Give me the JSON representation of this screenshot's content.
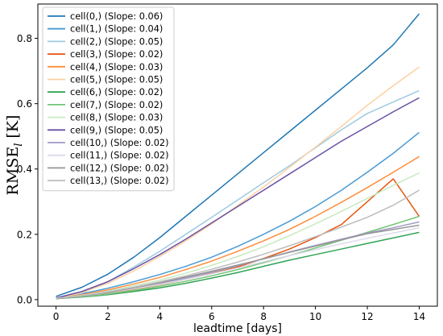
{
  "chart_data": {
    "type": "line",
    "xlabel": "leadtime [days]",
    "ylabel": "RMSE",
    "ylabel_subscript": "l",
    "ylabel_unit": " [K]",
    "xlim": [
      -0.7,
      14.7
    ],
    "ylim": [
      -0.02,
      0.905
    ],
    "xticks": [
      0,
      2,
      4,
      6,
      8,
      10,
      12,
      14
    ],
    "yticks": [
      0.0,
      0.2,
      0.4,
      0.6,
      0.8
    ],
    "ytick_labels": [
      "0.0",
      "0.2",
      "0.4",
      "0.6",
      "0.8"
    ],
    "grid": false,
    "legend_position": "top-left",
    "x": [
      0,
      1,
      2,
      3,
      4,
      5,
      6,
      7,
      8,
      9,
      10,
      11,
      12,
      13,
      14
    ],
    "series": [
      {
        "name": "cell(0,) (Slope: 0.06)",
        "color": "#1f77b4",
        "values": [
          0.01,
          0.038,
          0.078,
          0.13,
          0.19,
          0.255,
          0.32,
          0.385,
          0.45,
          0.515,
          0.58,
          0.645,
          0.71,
          0.78,
          0.875
        ]
      },
      {
        "name": "cell(1,) (Slope: 0.04)",
        "color": "#4a9bd4",
        "values": [
          0.006,
          0.018,
          0.035,
          0.055,
          0.077,
          0.102,
          0.13,
          0.163,
          0.2,
          0.24,
          0.285,
          0.335,
          0.39,
          0.448,
          0.512
        ]
      },
      {
        "name": "cell(2,) (Slope: 0.05)",
        "color": "#9ecae1",
        "values": [
          0.004,
          0.02,
          0.055,
          0.1,
          0.148,
          0.2,
          0.252,
          0.305,
          0.358,
          0.41,
          0.465,
          0.52,
          0.57,
          0.605,
          0.64
        ]
      },
      {
        "name": "cell(3,) (Slope: 0.02)",
        "color": "#e6550d",
        "values": [
          0.003,
          0.01,
          0.02,
          0.032,
          0.046,
          0.062,
          0.08,
          0.1,
          0.126,
          0.155,
          0.19,
          0.23,
          0.3,
          0.37,
          0.255
        ]
      },
      {
        "name": "cell(4,) (Slope: 0.03)",
        "color": "#fd8d3c",
        "values": [
          0.005,
          0.015,
          0.03,
          0.048,
          0.068,
          0.092,
          0.118,
          0.148,
          0.18,
          0.215,
          0.255,
          0.298,
          0.343,
          0.39,
          0.438
        ]
      },
      {
        "name": "cell(5,) (Slope: 0.05)",
        "color": "#fdd0a2",
        "values": [
          0.004,
          0.022,
          0.05,
          0.088,
          0.132,
          0.18,
          0.232,
          0.288,
          0.345,
          0.405,
          0.467,
          0.53,
          0.595,
          0.655,
          0.712
        ]
      },
      {
        "name": "cell(6,) (Slope: 0.02)",
        "color": "#31a354",
        "values": [
          0.003,
          0.008,
          0.015,
          0.025,
          0.036,
          0.05,
          0.066,
          0.083,
          0.102,
          0.121,
          0.138,
          0.155,
          0.172,
          0.189,
          0.206
        ]
      },
      {
        "name": "cell(7,) (Slope: 0.02)",
        "color": "#74c476",
        "values": [
          0.003,
          0.009,
          0.017,
          0.028,
          0.041,
          0.056,
          0.073,
          0.092,
          0.113,
          0.135,
          0.158,
          0.182,
          0.206,
          0.23,
          0.255
        ]
      },
      {
        "name": "cell(8,) (Slope: 0.03)",
        "color": "#c7e9c0",
        "values": [
          0.004,
          0.013,
          0.026,
          0.042,
          0.06,
          0.081,
          0.105,
          0.132,
          0.162,
          0.196,
          0.232,
          0.27,
          0.31,
          0.35,
          0.388
        ]
      },
      {
        "name": "cell(9,) (Slope: 0.05)",
        "color": "#6a51a3",
        "values": [
          0.005,
          0.025,
          0.055,
          0.095,
          0.138,
          0.185,
          0.235,
          0.285,
          0.335,
          0.385,
          0.435,
          0.485,
          0.53,
          0.575,
          0.618
        ]
      },
      {
        "name": "cell(10,) (Slope: 0.02)",
        "color": "#9e9ac8",
        "values": [
          0.004,
          0.011,
          0.021,
          0.034,
          0.049,
          0.066,
          0.084,
          0.104,
          0.125,
          0.146,
          0.166,
          0.185,
          0.204,
          0.22,
          0.238
        ]
      },
      {
        "name": "cell(11,) (Slope: 0.02)",
        "color": "#dadaeb",
        "values": [
          0.004,
          0.011,
          0.021,
          0.033,
          0.047,
          0.062,
          0.079,
          0.097,
          0.116,
          0.135,
          0.153,
          0.171,
          0.188,
          0.204,
          0.22
        ]
      },
      {
        "name": "cell(12,) (Slope: 0.02)",
        "color": "#969696",
        "values": [
          0.003,
          0.011,
          0.022,
          0.036,
          0.052,
          0.069,
          0.087,
          0.106,
          0.125,
          0.145,
          0.164,
          0.183,
          0.202,
          0.215,
          0.228
        ]
      },
      {
        "name": "cell(13,) (Slope: 0.02)",
        "color": "#bdbdbd",
        "values": [
          0.004,
          0.012,
          0.024,
          0.038,
          0.055,
          0.073,
          0.093,
          0.115,
          0.139,
          0.165,
          0.193,
          0.222,
          0.252,
          0.289,
          0.335
        ]
      }
    ]
  }
}
